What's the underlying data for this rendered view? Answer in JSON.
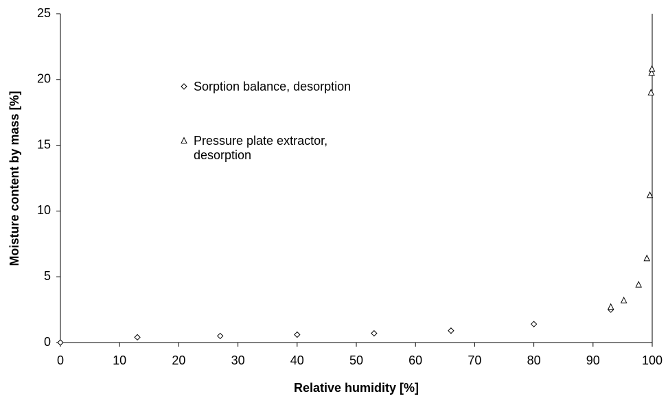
{
  "chart_data": {
    "type": "scatter",
    "xlabel": "Relative humidity [%]",
    "ylabel": "Moisture content by mass [%]",
    "xlim": [
      0,
      100
    ],
    "xticks": [
      0,
      10,
      20,
      30,
      40,
      50,
      60,
      70,
      80,
      90,
      100
    ],
    "ylim": [
      0,
      25
    ],
    "yticks": [
      0,
      5,
      10,
      15,
      20,
      25
    ],
    "grid": false,
    "series": [
      {
        "name": "Sorption balance, desorption",
        "marker": "diamond",
        "color": "#000000",
        "x": [
          0,
          13,
          27,
          40,
          53,
          66,
          80,
          93
        ],
        "values": [
          0,
          0.4,
          0.5,
          0.6,
          0.7,
          0.9,
          1.4,
          2.5
        ]
      },
      {
        "name": "Pressure plate extractor, desorption",
        "marker": "triangle",
        "color": "#000000",
        "x": [
          93,
          95.2,
          97.7,
          99.1,
          99.6,
          99.8,
          99.9,
          99.95
        ],
        "values": [
          2.7,
          3.2,
          4.4,
          6.4,
          11.2,
          19.0,
          20.5,
          20.8
        ]
      }
    ]
  }
}
